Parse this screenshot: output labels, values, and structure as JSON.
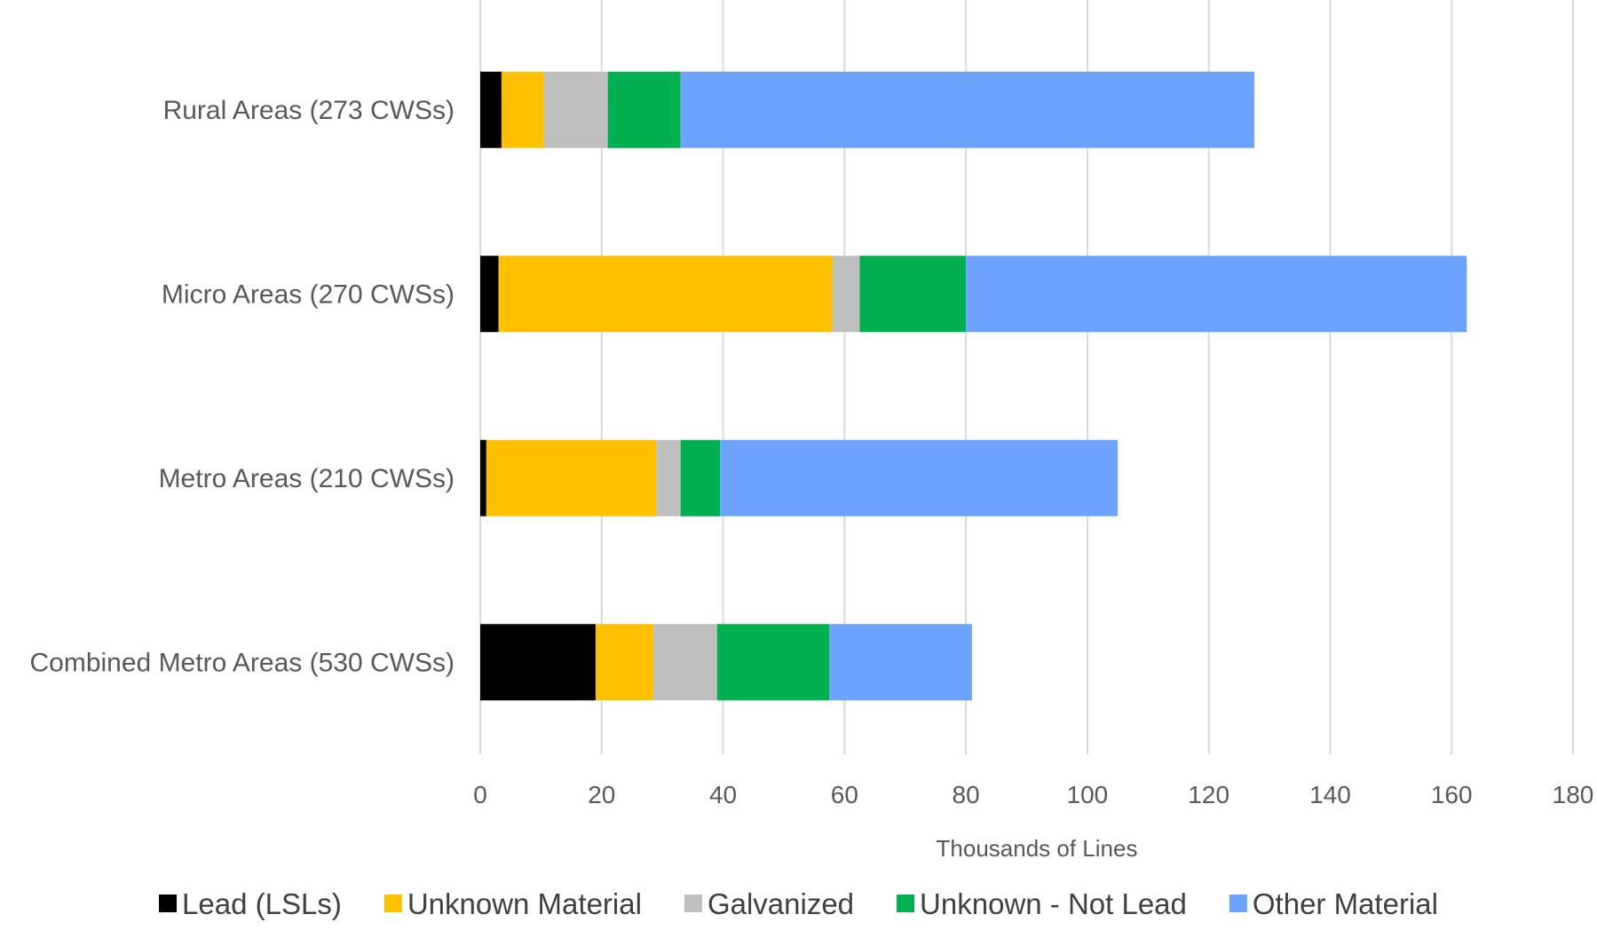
{
  "chart_data": {
    "type": "bar",
    "orientation": "horizontal",
    "stacked": true,
    "categories": [
      "Rural Areas (273 CWSs)",
      "Micro Areas (270 CWSs)",
      "Metro Areas (210 CWSs)",
      "Combined Metro Areas (530 CWSs)"
    ],
    "series": [
      {
        "name": "Lead (LSLs)",
        "color": "#000000",
        "values": [
          3.5,
          3,
          1,
          19
        ]
      },
      {
        "name": "Unknown Material",
        "color": "#ffc000",
        "values": [
          7,
          55,
          28,
          9.5
        ]
      },
      {
        "name": "Galvanized",
        "color": "#bfbfbf",
        "values": [
          10.5,
          4.5,
          4,
          10.5
        ]
      },
      {
        "name": "Unknown - Not Lead",
        "color": "#00b050",
        "values": [
          12,
          17.5,
          6.5,
          18.5
        ]
      },
      {
        "name": "Other Material",
        "color": "#6ca3ff",
        "values": [
          94.5,
          82.5,
          65.5,
          23.5
        ]
      }
    ],
    "xlabel": "Thousands of Lines",
    "ylabel": "",
    "xlim": [
      0,
      180
    ],
    "xticks": [
      "0",
      "20",
      "40",
      "60",
      "80",
      "100",
      "120",
      "140",
      "160",
      "180"
    ],
    "grid": "vertical",
    "legend": "bottom"
  }
}
